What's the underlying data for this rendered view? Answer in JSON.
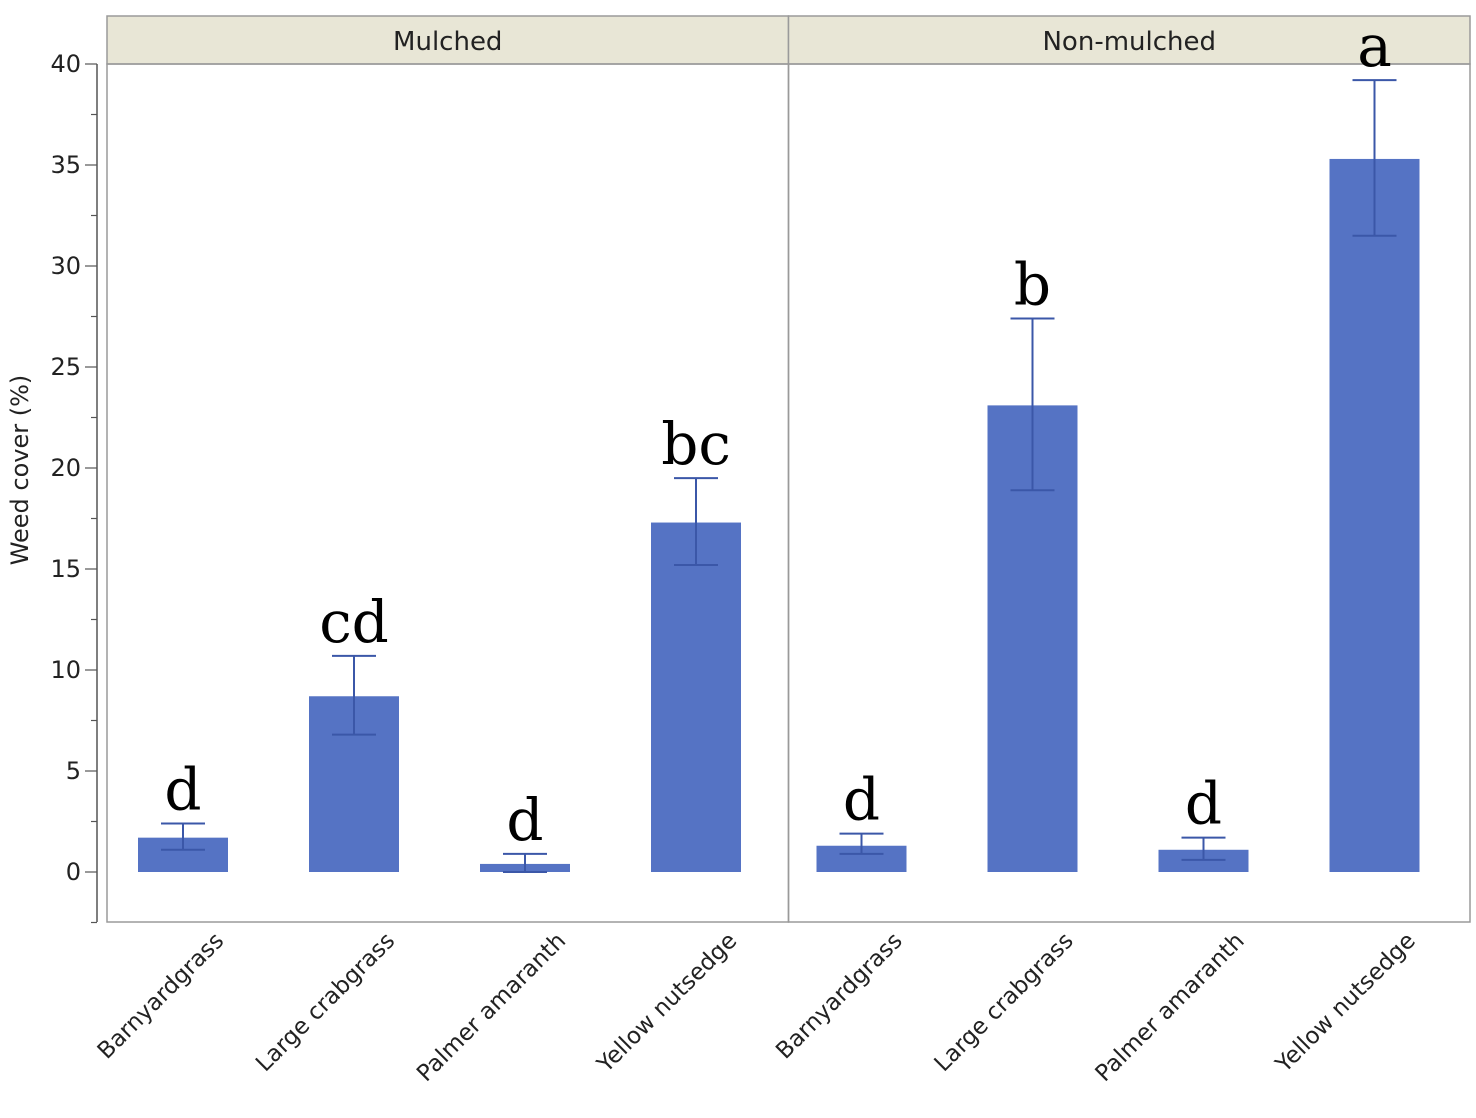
{
  "chart_data": {
    "type": "bar",
    "ylabel": "Weed cover (%)",
    "ylim": [
      -2.5,
      40
    ],
    "yticks": [
      0,
      5,
      10,
      15,
      20,
      25,
      30,
      35,
      40
    ],
    "grid": false,
    "colors": {
      "bar": "#5573c4",
      "error_bar": "#3b57a8",
      "panel_header": "#e8e6d6",
      "frame": "#9a9a9a"
    },
    "panels": [
      {
        "title": "Mulched",
        "categories": [
          "Barnyardgrass",
          "Large crabgrass",
          "Palmer amaranth",
          "Yellow nutsedge"
        ],
        "values": [
          1.7,
          8.7,
          0.4,
          17.3
        ],
        "error_low": [
          1.1,
          6.8,
          0.0,
          15.2
        ],
        "error_high": [
          2.4,
          10.7,
          0.9,
          19.5
        ],
        "letters": [
          "d",
          "cd",
          "d",
          "bc"
        ]
      },
      {
        "title": "Non-mulched",
        "categories": [
          "Barnyardgrass",
          "Large crabgrass",
          "Palmer amaranth",
          "Yellow nutsedge"
        ],
        "values": [
          1.3,
          23.1,
          1.1,
          35.3
        ],
        "error_low": [
          0.9,
          18.9,
          0.6,
          31.5
        ],
        "error_high": [
          1.9,
          27.4,
          1.7,
          39.2
        ],
        "letters": [
          "d",
          "b",
          "d",
          "a"
        ]
      }
    ]
  }
}
